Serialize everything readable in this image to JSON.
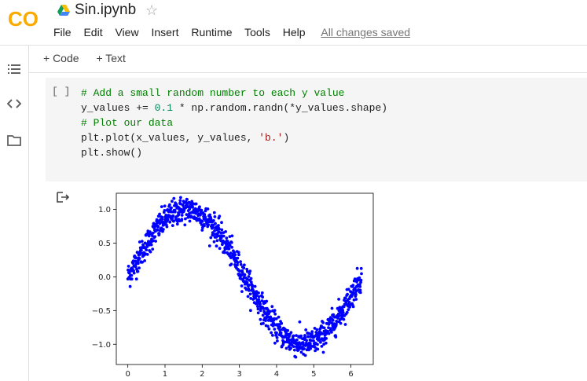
{
  "app": {
    "logo_text": "CO",
    "logo_color": "#F9AB00",
    "notebook_title": "Sin.ipynb",
    "star_icon": "star-outline-icon"
  },
  "menu": {
    "items": [
      "File",
      "Edit",
      "View",
      "Insert",
      "Runtime",
      "Tools",
      "Help"
    ],
    "status": "All changes saved"
  },
  "toolbar": {
    "add_code": "+ Code",
    "add_text": "+ Text"
  },
  "sidebar": {
    "icons": [
      "table-of-contents-icon",
      "code-snippets-icon",
      "files-icon"
    ]
  },
  "cell": {
    "run_indicator": "[ ]",
    "code_lines": [
      [
        {
          "t": "# Add a small random number to each y value",
          "c": "cmt"
        }
      ],
      [
        {
          "t": "y_values += ",
          "c": ""
        },
        {
          "t": "0.1",
          "c": "num"
        },
        {
          "t": " * np.random.randn(*y_values.shape)",
          "c": ""
        }
      ],
      [
        {
          "t": "# Plot our data",
          "c": "cmt"
        }
      ],
      [
        {
          "t": "plt.plot(x_values, y_values, ",
          "c": ""
        },
        {
          "t": "'b.'",
          "c": "str"
        },
        {
          "t": ")",
          "c": ""
        }
      ],
      [
        {
          "t": "plt.show()",
          "c": ""
        }
      ]
    ]
  },
  "output": {
    "icon": "output-arrow-icon"
  },
  "chart_data": {
    "type": "scatter",
    "description_of_series": "y = sin(x) + 0.1*noise, 1000 points, x in [0, 2π]",
    "series": [
      {
        "function": "sin",
        "noise_std": 0.1,
        "count": 1000,
        "color": "#0000FF",
        "marker": "."
      }
    ],
    "x_range": [
      0,
      6.283
    ],
    "xlim": [
      -0.31,
      6.6
    ],
    "ylim": [
      -1.3,
      1.24
    ],
    "xticks": [
      0,
      1,
      2,
      3,
      4,
      5,
      6
    ],
    "yticks": [
      -1.0,
      -0.5,
      0.0,
      0.5,
      1.0
    ],
    "ytick_labels": [
      "−1.0",
      "−0.5",
      "0.0",
      "0.5",
      "1.0"
    ],
    "title": "",
    "xlabel": "",
    "ylabel": "",
    "grid": false
  }
}
